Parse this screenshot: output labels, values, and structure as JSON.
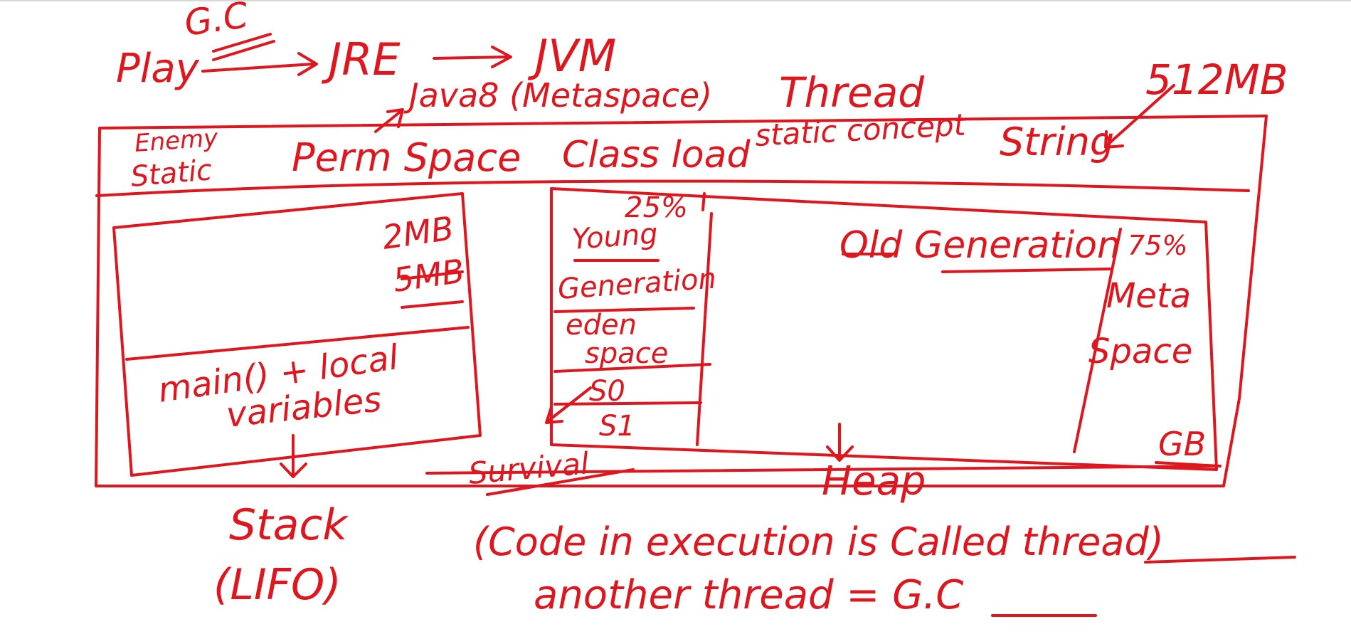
{
  "ink_color": "#e0161f",
  "header": {
    "gc_top": "G.C",
    "play": "Play",
    "jre": "JRE",
    "jvm": "JVM",
    "java8": "Java8 (Metaspace)",
    "thread": "Thread",
    "size_512": "512MB"
  },
  "top_band": {
    "enemy_static_1": "Enemy",
    "enemy_static_2": "Static",
    "perm_space": "Perm Space",
    "class_load": "Class load",
    "static_concept": "static concept",
    "string": "String"
  },
  "stack_box": {
    "size_2mb": "2MB",
    "size_5mb": "5MB",
    "main_locals_1": "main() + local",
    "main_locals_2": "variables",
    "label": "Stack",
    "lifo": "(LIFO)"
  },
  "heap_box": {
    "pct_25": "25%",
    "young_1": "Young",
    "young_2": "Generation",
    "eden_1": "eden",
    "eden_2": "space",
    "s0": "S0",
    "s1": "S1",
    "survival": "Survival",
    "old_gen": "Old Generation",
    "pct_75": "75%",
    "meta_1": "Meta",
    "meta_2": "Space",
    "gb": "GB",
    "label": "Heap"
  },
  "notes": {
    "line1": "(Code in execution is Called thread)",
    "line2": "another thread = G.C"
  }
}
